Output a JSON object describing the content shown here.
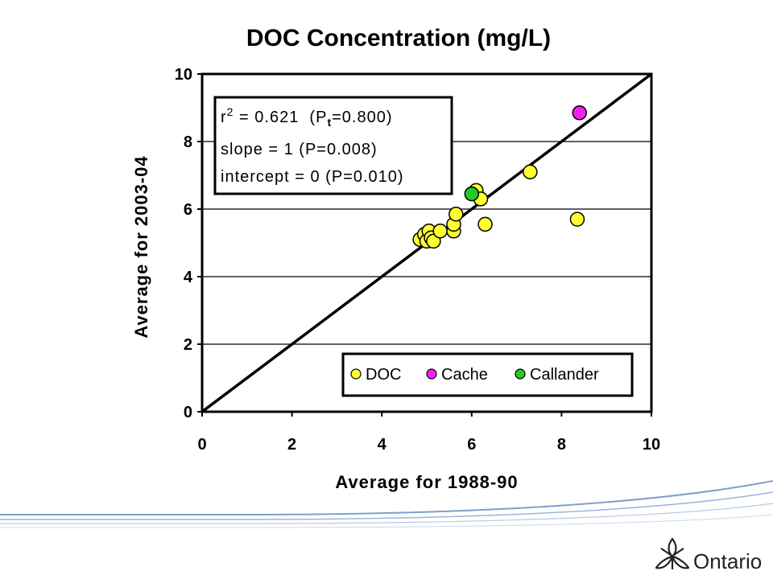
{
  "chart_data": {
    "type": "scatter",
    "title": "DOC Concentration (mg/L)",
    "xlabel": "Average for 1988-90",
    "ylabel": "Average for 2003-04",
    "xlim": [
      0,
      10
    ],
    "ylim": [
      0,
      10
    ],
    "xticks": [
      "0",
      "2",
      "4",
      "6",
      "8",
      "10"
    ],
    "yticks": [
      "0",
      "2",
      "4",
      "6",
      "8",
      "10"
    ],
    "grid": "horizontal",
    "reference_line": "1:1",
    "stats": {
      "r2_prefix": "r",
      "r2_sup": "2",
      "r2_value": " = 0.621  (P",
      "pt_sub": "t",
      "pt_value": "=0.800)",
      "slope": "slope = 1 (P=0.008)",
      "intercept": "intercept = 0 (P=0.010)"
    },
    "legend_position": "bottom-right",
    "series": [
      {
        "name": "DOC",
        "color": "#ffff33",
        "points": [
          [
            4.85,
            5.1
          ],
          [
            4.95,
            5.25
          ],
          [
            5.0,
            5.05
          ],
          [
            5.05,
            5.35
          ],
          [
            5.1,
            5.15
          ],
          [
            5.15,
            5.05
          ],
          [
            5.3,
            5.35
          ],
          [
            5.6,
            5.35
          ],
          [
            5.6,
            5.55
          ],
          [
            5.65,
            5.85
          ],
          [
            6.1,
            6.55
          ],
          [
            6.2,
            6.3
          ],
          [
            6.3,
            5.55
          ],
          [
            7.3,
            7.1
          ],
          [
            8.35,
            5.7
          ]
        ]
      },
      {
        "name": "Cache",
        "color": "#ee22ee",
        "points": [
          [
            8.4,
            8.85
          ]
        ]
      },
      {
        "name": "Callander",
        "color": "#22cc22",
        "points": [
          [
            6.0,
            6.45
          ]
        ]
      }
    ]
  },
  "logo": {
    "name": "Ontario",
    "icon": "trillium-icon"
  },
  "colors": {
    "line": "#000000",
    "grid": "#000000",
    "swoosh": "#7f9fca"
  }
}
